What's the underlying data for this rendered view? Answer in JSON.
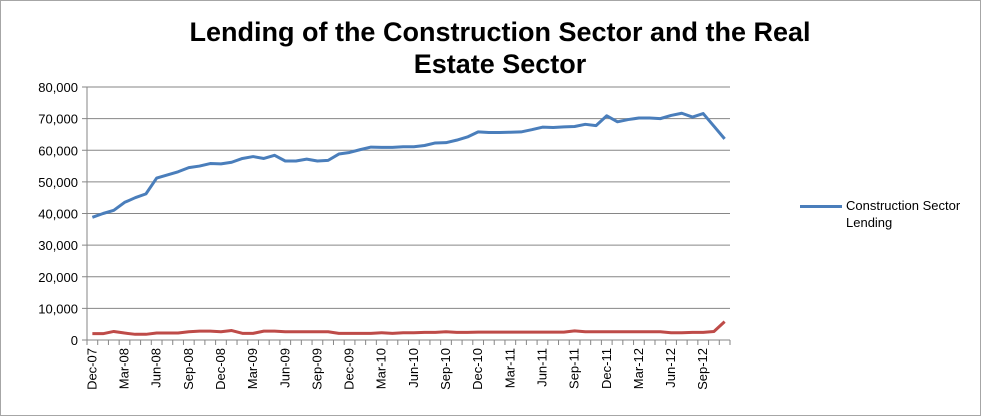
{
  "chart_data": {
    "type": "line",
    "title": "Lending of the Construction Sector and the Real Estate Sector",
    "categories": [
      "Dec-07",
      null,
      null,
      "Mar-08",
      null,
      null,
      "Jun-08",
      null,
      null,
      "Sep-08",
      null,
      null,
      "Dec-08",
      null,
      null,
      "Mar-09",
      null,
      null,
      "Jun-09",
      null,
      null,
      "Sep-09",
      null,
      null,
      "Dec-09",
      null,
      null,
      "Mar-10",
      null,
      null,
      "Jun-10",
      null,
      null,
      "Sep-10",
      null,
      null,
      "Dec-10",
      null,
      null,
      "Mar-11",
      null,
      null,
      "Jun-11",
      null,
      null,
      "Sep-11",
      null,
      null,
      "Dec-11",
      null,
      null,
      "Mar-12",
      null,
      null,
      "Jun-12",
      null,
      null,
      "Sep-12",
      null,
      null
    ],
    "series": [
      {
        "name": "Construction Sector Lending",
        "color": "#4a7ebb",
        "values": [
          38800,
          40000,
          41000,
          43500,
          45000,
          46200,
          51200,
          52200,
          53200,
          54500,
          55000,
          55800,
          55700,
          56200,
          57400,
          58000,
          57400,
          58400,
          56600,
          56600,
          57200,
          56600,
          56800,
          58800,
          59300,
          60200,
          61000,
          60900,
          60900,
          61100,
          61100,
          61500,
          62300,
          62400,
          63200,
          64200,
          65800,
          65600,
          65600,
          65700,
          65800,
          66500,
          67300,
          67200,
          67400,
          67500,
          68200,
          67800,
          70900,
          69000,
          69700,
          70200,
          70200,
          70000,
          71000,
          71700,
          70500,
          71600,
          67600,
          63600
        ]
      },
      {
        "color": "#be4b48",
        "values": [
          2000,
          2000,
          2700,
          2200,
          1800,
          1800,
          2200,
          2200,
          2200,
          2600,
          2800,
          2800,
          2600,
          3000,
          2100,
          2100,
          2800,
          2800,
          2600,
          2600,
          2600,
          2600,
          2600,
          2100,
          2100,
          2100,
          2100,
          2300,
          2100,
          2300,
          2300,
          2400,
          2400,
          2600,
          2400,
          2400,
          2500,
          2500,
          2500,
          2500,
          2500,
          2500,
          2500,
          2500,
          2500,
          2900,
          2600,
          2600,
          2600,
          2600,
          2600,
          2600,
          2600,
          2600,
          2300,
          2300,
          2400,
          2400,
          2700,
          5800
        ]
      }
    ],
    "ylim": [
      0,
      80000
    ],
    "yticks": [
      0,
      {
        "value": 10000,
        "label": "10,000"
      },
      {
        "value": 20000,
        "label": "20,000"
      },
      {
        "value": 30000,
        "label": "30,000"
      },
      {
        "value": 40000,
        "label": "40,000"
      },
      {
        "value": 50000,
        "label": "50,000"
      },
      {
        "value": 60000,
        "label": "60,000"
      },
      {
        "value": 70000,
        "label": "70,000"
      },
      {
        "value": 80000,
        "label": "80,000"
      }
    ],
    "grid": true,
    "legend": "right"
  }
}
